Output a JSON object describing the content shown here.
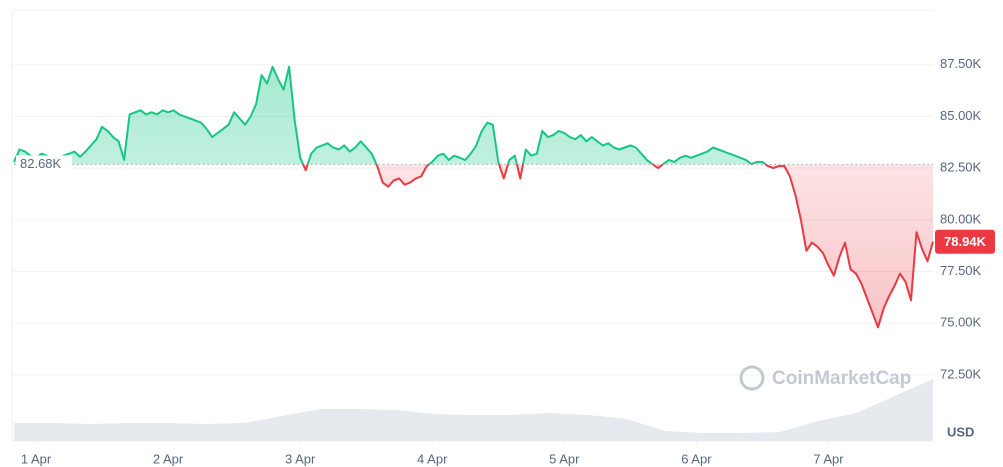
{
  "chart_data": {
    "type": "line",
    "baseline": {
      "value": 82680,
      "label": "82.68K"
    },
    "last_label": "78.94K",
    "currency": "USD",
    "watermark": "CoinMarketCap",
    "line_colors": {
      "up": "#16c784",
      "down": "#ea3943"
    },
    "xlim": [
      0,
      167
    ],
    "xticks": [
      {
        "value": 4,
        "label": "1 Apr"
      },
      {
        "value": 28,
        "label": "2 Apr"
      },
      {
        "value": 52,
        "label": "3 Apr"
      },
      {
        "value": 76,
        "label": "4 Apr"
      },
      {
        "value": 100,
        "label": "5 Apr"
      },
      {
        "value": 124,
        "label": "6 Apr"
      },
      {
        "value": 148,
        "label": "7 Apr"
      }
    ],
    "ylim": [
      69300,
      90150
    ],
    "yticks": [
      {
        "value": 72500,
        "label": "72.50K"
      },
      {
        "value": 75000,
        "label": "75.00K"
      },
      {
        "value": 77500,
        "label": "77.50K"
      },
      {
        "value": 80000,
        "label": "80.00K"
      },
      {
        "value": 82500,
        "label": "82.50K"
      },
      {
        "value": 85000,
        "label": "85.00K"
      },
      {
        "value": 87500,
        "label": "87.50K"
      }
    ],
    "grid": true,
    "values": [
      82800,
      83400,
      83300,
      83100,
      83000,
      83200,
      83100,
      82900,
      83000,
      83100,
      83200,
      83300,
      83050,
      83300,
      83600,
      83900,
      84500,
      84300,
      84000,
      83800,
      82900,
      85100,
      85200,
      85300,
      85100,
      85200,
      85100,
      85300,
      85200,
      85300,
      85100,
      85000,
      84900,
      84800,
      84700,
      84400,
      84000,
      84200,
      84400,
      84600,
      85200,
      84900,
      84600,
      85000,
      85600,
      87000,
      86600,
      87400,
      86800,
      86300,
      87400,
      84800,
      83000,
      82400,
      83200,
      83500,
      83600,
      83700,
      83500,
      83400,
      83600,
      83300,
      83500,
      83800,
      83500,
      83200,
      82600,
      81800,
      81600,
      81900,
      82000,
      81700,
      81800,
      82000,
      82100,
      82600,
      82800,
      83100,
      83200,
      82900,
      83100,
      83000,
      82900,
      83200,
      83600,
      84300,
      84700,
      84600,
      82800,
      82000,
      82900,
      83100,
      82000,
      83400,
      83100,
      83200,
      84300,
      84000,
      84100,
      84300,
      84200,
      84000,
      83900,
      84100,
      83800,
      84000,
      83800,
      83600,
      83700,
      83500,
      83400,
      83500,
      83600,
      83500,
      83200,
      82900,
      82700,
      82500,
      82700,
      82900,
      82800,
      83000,
      83100,
      83000,
      83100,
      83200,
      83300,
      83500,
      83400,
      83300,
      83200,
      83100,
      83000,
      82900,
      82700,
      82800,
      82800,
      82600,
      82500,
      82600,
      82600,
      82100,
      81200,
      80000,
      78500,
      78900,
      78700,
      78400,
      77800,
      77300,
      78200,
      78900,
      77600,
      77400,
      76900,
      76200,
      75500,
      74800,
      75700,
      76300,
      76800,
      77400,
      77000,
      76100,
      79400,
      78600,
      78000,
      78940
    ],
    "volume": {
      "color": "#e6e9ee",
      "ylim": [
        0,
        100
      ],
      "values": [
        18,
        18,
        17,
        18,
        18,
        17,
        18,
        25,
        32,
        32,
        31,
        27,
        26,
        26,
        28,
        26,
        22,
        10,
        8,
        8,
        9,
        20,
        28,
        45,
        62
      ]
    }
  }
}
